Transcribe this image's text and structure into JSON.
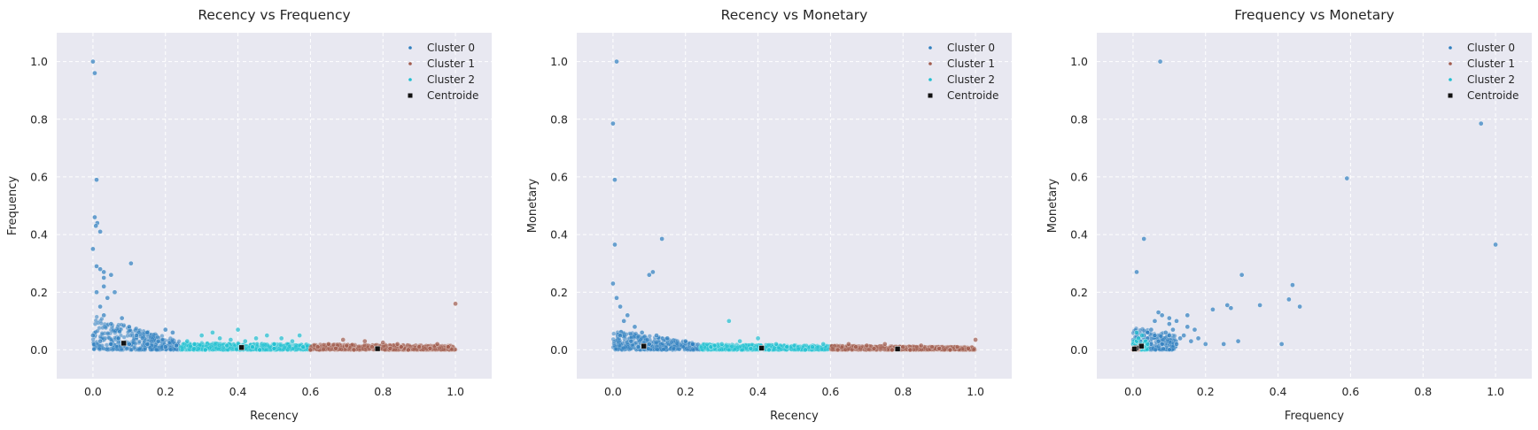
{
  "colors": {
    "cluster_0": "#2f7fbf",
    "cluster_1": "#a15c4e",
    "cluster_2": "#1fbfd0",
    "centroid": "#111111",
    "plot_background": "#e8e8f1",
    "grid": "#ffffff"
  },
  "chart_data": [
    {
      "type": "scatter",
      "title": "Recency vs Frequency",
      "xlabel": "Recency",
      "ylabel": "Frequency",
      "xlim": [
        -0.1,
        1.1
      ],
      "ylim": [
        -0.1,
        1.1
      ],
      "xticks": [
        "0.0",
        "0.2",
        "0.4",
        "0.6",
        "0.8",
        "1.0"
      ],
      "yticks": [
        "0.0",
        "0.2",
        "0.4",
        "0.6",
        "0.8",
        "1.0"
      ],
      "grid": true,
      "legend_position": "top-right",
      "series": [
        {
          "name": "Cluster 0",
          "points": [
            [
              0.0,
              1.0
            ],
            [
              0.005,
              0.96
            ],
            [
              0.01,
              0.59
            ],
            [
              0.005,
              0.46
            ],
            [
              0.012,
              0.44
            ],
            [
              0.008,
              0.43
            ],
            [
              0.02,
              0.41
            ],
            [
              0.0,
              0.35
            ],
            [
              0.01,
              0.29
            ],
            [
              0.02,
              0.28
            ],
            [
              0.03,
              0.27
            ],
            [
              0.05,
              0.26
            ],
            [
              0.03,
              0.25
            ],
            [
              0.03,
              0.22
            ],
            [
              0.06,
              0.2
            ],
            [
              0.04,
              0.18
            ],
            [
              0.105,
              0.3
            ],
            [
              0.08,
              0.11
            ],
            [
              0.1,
              0.08
            ],
            [
              0.02,
              0.15
            ],
            [
              0.03,
              0.12
            ],
            [
              0.01,
              0.2
            ],
            [
              0.05,
              0.09
            ],
            [
              0.15,
              0.06
            ],
            [
              0.2,
              0.07
            ],
            [
              0.22,
              0.06
            ],
            [
              0.12,
              0.05
            ],
            [
              0.0,
              0.05
            ],
            [
              0.02,
              0.03
            ],
            [
              0.05,
              0.02
            ],
            [
              0.1,
              0.02
            ],
            [
              0.15,
              0.02
            ],
            [
              0.2,
              0.01
            ],
            [
              0.23,
              0.015
            ],
            [
              0.07,
              0.04
            ],
            [
              0.18,
              0.03
            ]
          ]
        },
        {
          "name": "Cluster 1",
          "points": [
            [
              1.0,
              0.16
            ],
            [
              0.65,
              0.02
            ],
            [
              0.7,
              0.015
            ],
            [
              0.75,
              0.03
            ],
            [
              0.8,
              0.025
            ],
            [
              0.85,
              0.01
            ],
            [
              0.9,
              0.01
            ],
            [
              0.95,
              0.02
            ],
            [
              0.62,
              0.01
            ],
            [
              0.72,
              0.0
            ],
            [
              0.82,
              0.005
            ],
            [
              0.87,
              0.0
            ],
            [
              0.93,
              0.005
            ],
            [
              0.98,
              0.01
            ],
            [
              0.67,
              0.005
            ],
            [
              0.77,
              0.01
            ],
            [
              0.6,
              0.0
            ],
            [
              0.69,
              0.035
            ],
            [
              0.84,
              0.02
            ]
          ]
        },
        {
          "name": "Cluster 2",
          "points": [
            [
              0.26,
              0.03
            ],
            [
              0.3,
              0.05
            ],
            [
              0.35,
              0.04
            ],
            [
              0.38,
              0.035
            ],
            [
              0.42,
              0.03
            ],
            [
              0.45,
              0.04
            ],
            [
              0.5,
              0.02
            ],
            [
              0.55,
              0.03
            ],
            [
              0.57,
              0.05
            ],
            [
              0.4,
              0.07
            ],
            [
              0.33,
              0.06
            ],
            [
              0.48,
              0.05
            ],
            [
              0.52,
              0.04
            ],
            [
              0.28,
              0.02
            ],
            [
              0.37,
              0.015
            ],
            [
              0.44,
              0.01
            ],
            [
              0.5,
              0.005
            ],
            [
              0.58,
              0.01
            ],
            [
              0.31,
              0.0
            ],
            [
              0.46,
              0.0
            ]
          ]
        },
        {
          "name": "Centroide",
          "points": [
            [
              0.085,
              0.023
            ],
            [
              0.41,
              0.008
            ],
            [
              0.785,
              0.004
            ]
          ]
        }
      ],
      "dense_bands": [
        {
          "series": "Cluster 0",
          "x_min": 0.0,
          "x_max": 0.24,
          "y_max_start": 0.12,
          "y_max_end": 0.03
        },
        {
          "series": "Cluster 2",
          "x_min": 0.24,
          "x_max": 0.6,
          "y_max_start": 0.025,
          "y_max_end": 0.02
        },
        {
          "series": "Cluster 1",
          "x_min": 0.6,
          "x_max": 1.0,
          "y_max_start": 0.02,
          "y_max_end": 0.015
        }
      ]
    },
    {
      "type": "scatter",
      "title": "Recency vs Monetary",
      "xlabel": "Recency",
      "ylabel": "Monetary",
      "xlim": [
        -0.1,
        1.1
      ],
      "ylim": [
        -0.1,
        1.1
      ],
      "xticks": [
        "0.0",
        "0.2",
        "0.4",
        "0.6",
        "0.8",
        "1.0"
      ],
      "yticks": [
        "0.0",
        "0.2",
        "0.4",
        "0.6",
        "0.8",
        "1.0"
      ],
      "grid": true,
      "legend_position": "top-right",
      "series": [
        {
          "name": "Cluster 0",
          "points": [
            [
              0.01,
              1.0
            ],
            [
              0.0,
              0.785
            ],
            [
              0.005,
              0.59
            ],
            [
              0.005,
              0.365
            ],
            [
              0.135,
              0.385
            ],
            [
              0.11,
              0.27
            ],
            [
              0.1,
              0.26
            ],
            [
              0.0,
              0.23
            ],
            [
              0.01,
              0.18
            ],
            [
              0.02,
              0.15
            ],
            [
              0.04,
              0.12
            ],
            [
              0.03,
              0.1
            ],
            [
              0.06,
              0.08
            ],
            [
              0.08,
              0.06
            ],
            [
              0.12,
              0.05
            ],
            [
              0.15,
              0.04
            ],
            [
              0.2,
              0.03
            ],
            [
              0.22,
              0.02
            ],
            [
              0.05,
              0.03
            ],
            [
              0.1,
              0.02
            ],
            [
              0.02,
              0.05
            ],
            [
              0.07,
              0.01
            ]
          ]
        },
        {
          "name": "Cluster 1",
          "points": [
            [
              1.0,
              0.035
            ],
            [
              0.65,
              0.02
            ],
            [
              0.7,
              0.015
            ],
            [
              0.75,
              0.02
            ],
            [
              0.8,
              0.01
            ],
            [
              0.85,
              0.015
            ],
            [
              0.9,
              0.005
            ],
            [
              0.95,
              0.01
            ],
            [
              0.62,
              0.0
            ],
            [
              0.72,
              0.005
            ],
            [
              0.82,
              0.0
            ],
            [
              0.88,
              0.01
            ],
            [
              0.93,
              0.0
            ],
            [
              0.98,
              0.005
            ],
            [
              0.67,
              0.01
            ],
            [
              0.77,
              0.0
            ]
          ]
        },
        {
          "name": "Cluster 2",
          "points": [
            [
              0.32,
              0.1
            ],
            [
              0.4,
              0.04
            ],
            [
              0.3,
              0.02
            ],
            [
              0.35,
              0.03
            ],
            [
              0.45,
              0.02
            ],
            [
              0.5,
              0.015
            ],
            [
              0.55,
              0.01
            ],
            [
              0.58,
              0.02
            ],
            [
              0.27,
              0.01
            ],
            [
              0.38,
              0.005
            ],
            [
              0.43,
              0.0
            ],
            [
              0.48,
              0.01
            ],
            [
              0.53,
              0.0
            ],
            [
              0.28,
              0.015
            ]
          ]
        },
        {
          "name": "Centroide",
          "points": [
            [
              0.085,
              0.013
            ],
            [
              0.41,
              0.006
            ],
            [
              0.785,
              0.003
            ]
          ]
        }
      ],
      "dense_bands": [
        {
          "series": "Cluster 0",
          "x_min": 0.0,
          "x_max": 0.24,
          "y_max_start": 0.07,
          "y_max_end": 0.02
        },
        {
          "series": "Cluster 2",
          "x_min": 0.24,
          "x_max": 0.6,
          "y_max_start": 0.02,
          "y_max_end": 0.015
        },
        {
          "series": "Cluster 1",
          "x_min": 0.6,
          "x_max": 1.0,
          "y_max_start": 0.015,
          "y_max_end": 0.01
        }
      ]
    },
    {
      "type": "scatter",
      "title": "Frequency vs Monetary",
      "xlabel": "Frequency",
      "ylabel": "Monetary",
      "xlim": [
        -0.1,
        1.1
      ],
      "ylim": [
        -0.1,
        1.1
      ],
      "xticks": [
        "0.0",
        "0.2",
        "0.4",
        "0.6",
        "0.8",
        "1.0"
      ],
      "yticks": [
        "0.0",
        "0.2",
        "0.4",
        "0.6",
        "0.8",
        "1.0"
      ],
      "grid": true,
      "legend_position": "top-right",
      "series": [
        {
          "name": "Cluster 0",
          "points": [
            [
              0.075,
              1.0
            ],
            [
              0.96,
              0.785
            ],
            [
              0.59,
              0.595
            ],
            [
              1.0,
              0.365
            ],
            [
              0.03,
              0.385
            ],
            [
              0.01,
              0.27
            ],
            [
              0.3,
              0.26
            ],
            [
              0.44,
              0.225
            ],
            [
              0.43,
              0.175
            ],
            [
              0.46,
              0.15
            ],
            [
              0.35,
              0.155
            ],
            [
              0.26,
              0.155
            ],
            [
              0.27,
              0.145
            ],
            [
              0.22,
              0.14
            ],
            [
              0.41,
              0.02
            ],
            [
              0.29,
              0.03
            ],
            [
              0.25,
              0.02
            ],
            [
              0.2,
              0.02
            ],
            [
              0.17,
              0.07
            ],
            [
              0.15,
              0.08
            ],
            [
              0.12,
              0.1
            ],
            [
              0.1,
              0.09
            ],
            [
              0.08,
              0.12
            ],
            [
              0.06,
              0.1
            ],
            [
              0.05,
              0.07
            ],
            [
              0.04,
              0.06
            ],
            [
              0.03,
              0.05
            ],
            [
              0.1,
              0.05
            ],
            [
              0.13,
              0.04
            ],
            [
              0.16,
              0.03
            ],
            [
              0.07,
              0.03
            ],
            [
              0.09,
              0.06
            ],
            [
              0.11,
              0.07
            ],
            [
              0.14,
              0.05
            ],
            [
              0.18,
              0.04
            ],
            [
              0.02,
              0.03
            ],
            [
              0.05,
              0.02
            ],
            [
              0.08,
              0.02
            ],
            [
              0.12,
              0.02
            ],
            [
              0.06,
              0.05
            ],
            [
              0.04,
              0.04
            ],
            [
              0.1,
              0.11
            ],
            [
              0.07,
              0.13
            ],
            [
              0.15,
              0.12
            ]
          ]
        },
        {
          "name": "Cluster 1",
          "points": [
            [
              0.0,
              0.0
            ],
            [
              0.005,
              0.005
            ],
            [
              0.01,
              0.0
            ],
            [
              0.003,
              0.008
            ]
          ]
        },
        {
          "name": "Cluster 2",
          "points": [
            [
              0.0,
              0.02
            ],
            [
              0.01,
              0.03
            ],
            [
              0.02,
              0.02
            ],
            [
              0.03,
              0.01
            ],
            [
              0.015,
              0.04
            ],
            [
              0.025,
              0.05
            ],
            [
              0.005,
              0.015
            ],
            [
              0.035,
              0.03
            ],
            [
              0.01,
              0.06
            ],
            [
              0.04,
              0.02
            ]
          ]
        },
        {
          "name": "Centroide",
          "points": [
            [
              0.023,
              0.013
            ],
            [
              0.008,
              0.006
            ],
            [
              0.004,
              0.003
            ]
          ]
        }
      ],
      "dense_bands": [
        {
          "series": "Cluster 0",
          "x_min": 0.0,
          "x_max": 0.12,
          "y_max_start": 0.08,
          "y_max_end": 0.05
        },
        {
          "series": "Cluster 2",
          "x_min": 0.0,
          "x_max": 0.04,
          "y_max_start": 0.04,
          "y_max_end": 0.03
        },
        {
          "series": "Cluster 1",
          "x_min": 0.0,
          "x_max": 0.015,
          "y_max_start": 0.01,
          "y_max_end": 0.01
        }
      ]
    }
  ]
}
